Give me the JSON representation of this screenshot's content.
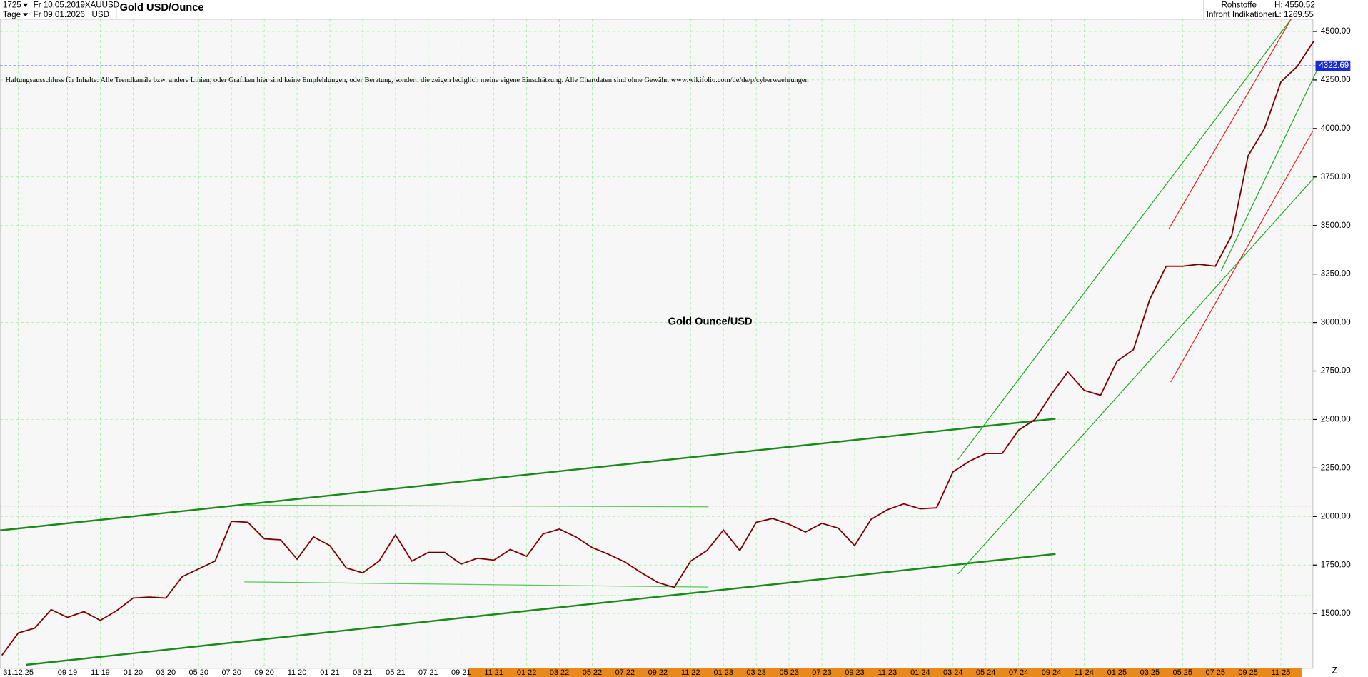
{
  "header": {
    "count": "1725",
    "start_date": "Fr 10.05.2019",
    "symbol": "XAUUSD",
    "name": "Gold USD/Ounce",
    "period": "Tage",
    "end_date": "Fr 09.01.2026",
    "currency": "USD",
    "group": "Rohstoffe",
    "high": "H: 4550.52",
    "source": "Infront Indikationen",
    "low": "L: 1269.55"
  },
  "disclaimer": "Haftungsausschluss für Inhalte: Alle Trendkanäle bzw. andere Linien, oder Grafiken hier sind keine Empfehlungen, oder Beratung, sondern die zeigen lediglich meine eigene Einschätzung. Alle Chartdaten sind ohne Gewähr. www.wikifolio.com/de/de/p/cyberwaehrungen",
  "chart_data": {
    "type": "line",
    "title": "Gold Ounce/USD",
    "categories": [
      null,
      "31.12.25",
      null,
      null,
      "09 19",
      null,
      "11 19",
      null,
      "01 20",
      null,
      "03 20",
      null,
      "05 20",
      null,
      "07 20",
      null,
      "09 20",
      null,
      "11 20",
      null,
      "01 21",
      null,
      "03 21",
      null,
      "05 21",
      null,
      "07 21",
      null,
      "09 21",
      null,
      "11 21",
      null,
      "01 22",
      null,
      "03 22",
      null,
      "05 22",
      null,
      "07 22",
      null,
      "09 22",
      null,
      "11 22",
      null,
      "01 23",
      null,
      "03 23",
      null,
      "05 23",
      null,
      "07 23",
      null,
      "09 23",
      null,
      "11 23",
      null,
      "01 24",
      null,
      "03 24",
      null,
      "05 24",
      null,
      "07 24",
      null,
      "09 24",
      null,
      "11 24",
      null,
      "01 25",
      null,
      "03 25",
      null,
      "05 25",
      null,
      "07 25",
      null,
      "09 25",
      null,
      "11 25",
      null,
      null
    ],
    "values": [
      1285,
      1400,
      1425,
      1520,
      1480,
      1510,
      1465,
      1515,
      1580,
      1585,
      1580,
      1690,
      1730,
      1770,
      1975,
      1970,
      1885,
      1880,
      1780,
      1895,
      1850,
      1735,
      1710,
      1770,
      1905,
      1770,
      1815,
      1815,
      1755,
      1785,
      1775,
      1830,
      1795,
      1910,
      1935,
      1895,
      1840,
      1805,
      1765,
      1710,
      1660,
      1635,
      1770,
      1825,
      1930,
      1825,
      1970,
      1990,
      1960,
      1920,
      1965,
      1940,
      1850,
      1985,
      2035,
      2065,
      2040,
      2045,
      2230,
      2285,
      2325,
      2325,
      2445,
      2500,
      2630,
      2745,
      2650,
      2625,
      2800,
      2860,
      3120,
      3290,
      3290,
      3300,
      3290,
      3450,
      3860,
      4000,
      4240,
      4320,
      4450
    ],
    "color": "#cc1111",
    "last_value": 4322.69,
    "ylim": [
      1218,
      4563
    ],
    "yticks": [
      {
        "value": 1500,
        "label": "1500.00"
      },
      {
        "value": 1750,
        "label": "1750.00"
      },
      {
        "value": 2000,
        "label": "2000.00"
      },
      {
        "value": 2250,
        "label": "2250.00"
      },
      {
        "value": 2500,
        "label": "2500.00"
      },
      {
        "value": 2750,
        "label": "2750.00"
      },
      {
        "value": 3000,
        "label": "3000.00"
      },
      {
        "value": 3250,
        "label": "3250.00"
      },
      {
        "value": 3500,
        "label": "3500.00"
      },
      {
        "value": 3750,
        "label": "3750.00"
      },
      {
        "value": 4000,
        "label": "4000.00"
      },
      {
        "value": 4250,
        "label": "4250.00"
      },
      {
        "value": 4500,
        "label": "4500.00"
      }
    ],
    "grid": true,
    "x_end_label": "Z"
  }
}
